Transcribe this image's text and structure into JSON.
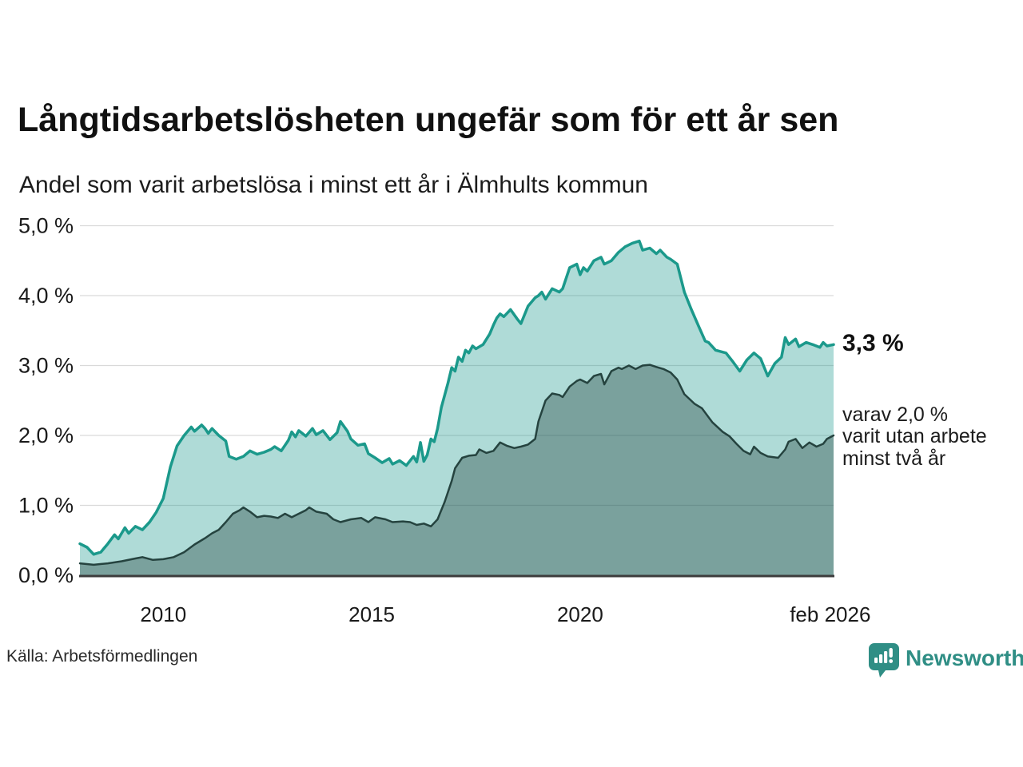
{
  "header": {
    "title": "Långtidsarbetslösheten ungefär som för ett år sen",
    "subtitle": "Andel som varit arbetslösa i minst ett år i Älmhults kommun"
  },
  "annotations": {
    "latest_value": "3,3 %",
    "secondary_note": "varav 2,0 %\nvarit utan arbete\nminst två år"
  },
  "footer": {
    "source": "Källa: Arbetsförmedlingen",
    "brand": "Newsworthy",
    "brand_color": "#2f8e85"
  },
  "chart_data": {
    "type": "area",
    "title": "Andel som varit arbetslösa i minst ett år i Älmhults kommun",
    "xlabel": "",
    "ylabel": "",
    "xlim": [
      2008.0,
      2026.08
    ],
    "ylim": [
      0,
      5
    ],
    "grid": true,
    "legend_position": "none",
    "grid_color": "#d9d9d9",
    "axis_color": "#3c3c3c",
    "tick_color": "#1a1a1a",
    "y_ticks": [
      {
        "v": 0,
        "label": "0,0 %"
      },
      {
        "v": 1,
        "label": "1,0 %"
      },
      {
        "v": 2,
        "label": "2,0 %"
      },
      {
        "v": 3,
        "label": "3,0 %"
      },
      {
        "v": 4,
        "label": "4,0 %"
      },
      {
        "v": 5,
        "label": "5,0 %"
      }
    ],
    "x_ticks": [
      {
        "x": 2010,
        "label": "2010"
      },
      {
        "x": 2015,
        "label": "2015"
      },
      {
        "x": 2020,
        "label": "2020"
      },
      {
        "x": 2026.0,
        "label": "feb 2026"
      }
    ],
    "series": [
      {
        "name": "Arbetslösa minst ett år",
        "color": "#1b998b",
        "fill": "rgba(27,153,139,0.35)",
        "line_width": 3.5,
        "points": [
          [
            2008.0,
            0.45
          ],
          [
            2008.17,
            0.4
          ],
          [
            2008.33,
            0.3
          ],
          [
            2008.5,
            0.33
          ],
          [
            2008.67,
            0.45
          ],
          [
            2008.83,
            0.58
          ],
          [
            2008.92,
            0.52
          ],
          [
            2009.08,
            0.68
          ],
          [
            2009.17,
            0.6
          ],
          [
            2009.33,
            0.7
          ],
          [
            2009.5,
            0.65
          ],
          [
            2009.67,
            0.76
          ],
          [
            2009.83,
            0.9
          ],
          [
            2010.0,
            1.1
          ],
          [
            2010.17,
            1.55
          ],
          [
            2010.33,
            1.85
          ],
          [
            2010.5,
            2.0
          ],
          [
            2010.67,
            2.12
          ],
          [
            2010.75,
            2.06
          ],
          [
            2010.92,
            2.15
          ],
          [
            2011.0,
            2.1
          ],
          [
            2011.08,
            2.03
          ],
          [
            2011.17,
            2.1
          ],
          [
            2011.33,
            2.0
          ],
          [
            2011.5,
            1.92
          ],
          [
            2011.58,
            1.7
          ],
          [
            2011.75,
            1.66
          ],
          [
            2011.92,
            1.7
          ],
          [
            2012.08,
            1.78
          ],
          [
            2012.25,
            1.73
          ],
          [
            2012.42,
            1.76
          ],
          [
            2012.58,
            1.8
          ],
          [
            2012.67,
            1.84
          ],
          [
            2012.83,
            1.78
          ],
          [
            2013.0,
            1.93
          ],
          [
            2013.08,
            2.05
          ],
          [
            2013.17,
            1.98
          ],
          [
            2013.25,
            2.07
          ],
          [
            2013.42,
            1.99
          ],
          [
            2013.58,
            2.1
          ],
          [
            2013.67,
            2.01
          ],
          [
            2013.83,
            2.07
          ],
          [
            2014.0,
            1.94
          ],
          [
            2014.17,
            2.04
          ],
          [
            2014.25,
            2.2
          ],
          [
            2014.42,
            2.06
          ],
          [
            2014.5,
            1.95
          ],
          [
            2014.67,
            1.86
          ],
          [
            2014.83,
            1.88
          ],
          [
            2014.92,
            1.74
          ],
          [
            2015.08,
            1.68
          ],
          [
            2015.25,
            1.61
          ],
          [
            2015.42,
            1.67
          ],
          [
            2015.5,
            1.59
          ],
          [
            2015.67,
            1.64
          ],
          [
            2015.83,
            1.57
          ],
          [
            2016.0,
            1.7
          ],
          [
            2016.08,
            1.62
          ],
          [
            2016.17,
            1.9
          ],
          [
            2016.25,
            1.63
          ],
          [
            2016.33,
            1.72
          ],
          [
            2016.42,
            1.95
          ],
          [
            2016.5,
            1.91
          ],
          [
            2016.58,
            2.1
          ],
          [
            2016.67,
            2.4
          ],
          [
            2016.83,
            2.75
          ],
          [
            2016.92,
            2.97
          ],
          [
            2017.0,
            2.92
          ],
          [
            2017.08,
            3.12
          ],
          [
            2017.17,
            3.06
          ],
          [
            2017.25,
            3.22
          ],
          [
            2017.33,
            3.18
          ],
          [
            2017.42,
            3.28
          ],
          [
            2017.5,
            3.24
          ],
          [
            2017.67,
            3.3
          ],
          [
            2017.83,
            3.45
          ],
          [
            2017.92,
            3.58
          ],
          [
            2018.0,
            3.68
          ],
          [
            2018.08,
            3.74
          ],
          [
            2018.17,
            3.7
          ],
          [
            2018.33,
            3.8
          ],
          [
            2018.5,
            3.66
          ],
          [
            2018.58,
            3.6
          ],
          [
            2018.75,
            3.85
          ],
          [
            2018.92,
            3.97
          ],
          [
            2019.0,
            4.0
          ],
          [
            2019.08,
            4.05
          ],
          [
            2019.17,
            3.95
          ],
          [
            2019.33,
            4.1
          ],
          [
            2019.5,
            4.05
          ],
          [
            2019.58,
            4.1
          ],
          [
            2019.75,
            4.4
          ],
          [
            2019.92,
            4.45
          ],
          [
            2020.0,
            4.3
          ],
          [
            2020.08,
            4.4
          ],
          [
            2020.17,
            4.35
          ],
          [
            2020.33,
            4.5
          ],
          [
            2020.5,
            4.55
          ],
          [
            2020.58,
            4.45
          ],
          [
            2020.75,
            4.5
          ],
          [
            2020.92,
            4.62
          ],
          [
            2021.08,
            4.7
          ],
          [
            2021.25,
            4.75
          ],
          [
            2021.42,
            4.78
          ],
          [
            2021.5,
            4.65
          ],
          [
            2021.67,
            4.68
          ],
          [
            2021.83,
            4.6
          ],
          [
            2021.92,
            4.65
          ],
          [
            2022.08,
            4.55
          ],
          [
            2022.17,
            4.52
          ],
          [
            2022.33,
            4.45
          ],
          [
            2022.5,
            4.05
          ],
          [
            2022.67,
            3.8
          ],
          [
            2022.83,
            3.58
          ],
          [
            2023.0,
            3.35
          ],
          [
            2023.08,
            3.33
          ],
          [
            2023.25,
            3.22
          ],
          [
            2023.5,
            3.18
          ],
          [
            2023.67,
            3.05
          ],
          [
            2023.83,
            2.92
          ],
          [
            2024.0,
            3.08
          ],
          [
            2024.17,
            3.18
          ],
          [
            2024.33,
            3.1
          ],
          [
            2024.5,
            2.85
          ],
          [
            2024.67,
            3.03
          ],
          [
            2024.83,
            3.12
          ],
          [
            2024.92,
            3.4
          ],
          [
            2025.0,
            3.3
          ],
          [
            2025.17,
            3.38
          ],
          [
            2025.25,
            3.27
          ],
          [
            2025.42,
            3.33
          ],
          [
            2025.58,
            3.3
          ],
          [
            2025.75,
            3.26
          ],
          [
            2025.83,
            3.33
          ],
          [
            2025.92,
            3.28
          ],
          [
            2026.08,
            3.3
          ]
        ]
      },
      {
        "name": "Arbetslösa minst två år",
        "color": "#25433f",
        "fill": "rgba(37,67,63,0.38)",
        "line_width": 2.5,
        "points": [
          [
            2008.0,
            0.17
          ],
          [
            2008.33,
            0.15
          ],
          [
            2008.67,
            0.17
          ],
          [
            2009.0,
            0.2
          ],
          [
            2009.33,
            0.24
          ],
          [
            2009.5,
            0.26
          ],
          [
            2009.75,
            0.22
          ],
          [
            2010.0,
            0.23
          ],
          [
            2010.25,
            0.26
          ],
          [
            2010.5,
            0.33
          ],
          [
            2010.75,
            0.44
          ],
          [
            2011.0,
            0.53
          ],
          [
            2011.17,
            0.6
          ],
          [
            2011.33,
            0.65
          ],
          [
            2011.5,
            0.76
          ],
          [
            2011.67,
            0.88
          ],
          [
            2011.83,
            0.93
          ],
          [
            2011.92,
            0.97
          ],
          [
            2012.08,
            0.91
          ],
          [
            2012.25,
            0.83
          ],
          [
            2012.42,
            0.85
          ],
          [
            2012.58,
            0.84
          ],
          [
            2012.75,
            0.82
          ],
          [
            2012.92,
            0.88
          ],
          [
            2013.08,
            0.83
          ],
          [
            2013.25,
            0.88
          ],
          [
            2013.42,
            0.93
          ],
          [
            2013.5,
            0.97
          ],
          [
            2013.67,
            0.91
          ],
          [
            2013.92,
            0.88
          ],
          [
            2014.08,
            0.8
          ],
          [
            2014.25,
            0.76
          ],
          [
            2014.5,
            0.8
          ],
          [
            2014.75,
            0.82
          ],
          [
            2014.92,
            0.76
          ],
          [
            2015.08,
            0.83
          ],
          [
            2015.33,
            0.8
          ],
          [
            2015.5,
            0.76
          ],
          [
            2015.75,
            0.77
          ],
          [
            2015.92,
            0.76
          ],
          [
            2016.08,
            0.72
          ],
          [
            2016.25,
            0.74
          ],
          [
            2016.42,
            0.7
          ],
          [
            2016.58,
            0.8
          ],
          [
            2016.75,
            1.05
          ],
          [
            2016.92,
            1.35
          ],
          [
            2017.0,
            1.53
          ],
          [
            2017.17,
            1.68
          ],
          [
            2017.33,
            1.71
          ],
          [
            2017.5,
            1.72
          ],
          [
            2017.58,
            1.8
          ],
          [
            2017.75,
            1.75
          ],
          [
            2017.92,
            1.78
          ],
          [
            2018.08,
            1.9
          ],
          [
            2018.25,
            1.85
          ],
          [
            2018.42,
            1.82
          ],
          [
            2018.58,
            1.84
          ],
          [
            2018.75,
            1.87
          ],
          [
            2018.92,
            1.95
          ],
          [
            2019.0,
            2.2
          ],
          [
            2019.17,
            2.5
          ],
          [
            2019.33,
            2.6
          ],
          [
            2019.5,
            2.58
          ],
          [
            2019.58,
            2.55
          ],
          [
            2019.75,
            2.7
          ],
          [
            2019.92,
            2.78
          ],
          [
            2020.0,
            2.8
          ],
          [
            2020.17,
            2.75
          ],
          [
            2020.33,
            2.85
          ],
          [
            2020.5,
            2.88
          ],
          [
            2020.58,
            2.73
          ],
          [
            2020.75,
            2.92
          ],
          [
            2020.92,
            2.97
          ],
          [
            2021.0,
            2.95
          ],
          [
            2021.17,
            3.0
          ],
          [
            2021.33,
            2.95
          ],
          [
            2021.5,
            3.0
          ],
          [
            2021.67,
            3.01
          ],
          [
            2021.83,
            2.98
          ],
          [
            2022.0,
            2.95
          ],
          [
            2022.17,
            2.9
          ],
          [
            2022.33,
            2.8
          ],
          [
            2022.5,
            2.59
          ],
          [
            2022.75,
            2.45
          ],
          [
            2022.92,
            2.39
          ],
          [
            2023.17,
            2.19
          ],
          [
            2023.42,
            2.05
          ],
          [
            2023.58,
            1.99
          ],
          [
            2023.75,
            1.88
          ],
          [
            2023.92,
            1.78
          ],
          [
            2024.08,
            1.73
          ],
          [
            2024.17,
            1.84
          ],
          [
            2024.33,
            1.75
          ],
          [
            2024.5,
            1.7
          ],
          [
            2024.75,
            1.68
          ],
          [
            2024.92,
            1.8
          ],
          [
            2025.0,
            1.91
          ],
          [
            2025.17,
            1.95
          ],
          [
            2025.33,
            1.82
          ],
          [
            2025.5,
            1.9
          ],
          [
            2025.67,
            1.84
          ],
          [
            2025.83,
            1.88
          ],
          [
            2025.92,
            1.95
          ],
          [
            2026.08,
            2.0
          ]
        ]
      }
    ]
  }
}
